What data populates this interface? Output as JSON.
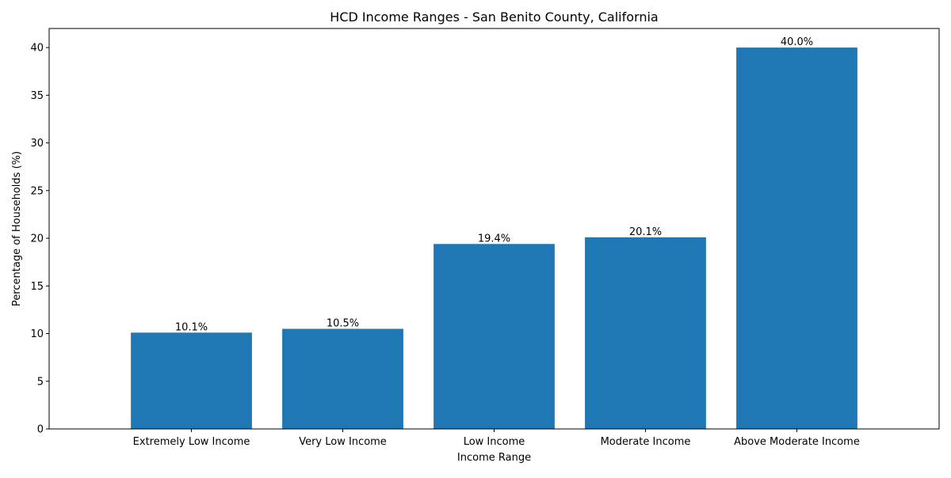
{
  "chart_data": {
    "type": "bar",
    "title": "HCD Income Ranges - San Benito County, California",
    "xlabel": "Income Range",
    "ylabel": "Percentage of Households (%)",
    "categories": [
      "Extremely Low Income",
      "Very Low Income",
      "Low Income",
      "Moderate Income",
      "Above Moderate Income"
    ],
    "values": [
      10.1,
      10.5,
      19.4,
      20.1,
      40.0
    ],
    "data_labels": [
      "10.1%",
      "10.5%",
      "19.4%",
      "20.1%",
      "40.0%"
    ],
    "ylim": [
      0,
      42
    ],
    "yticks": [
      0,
      5,
      10,
      15,
      20,
      25,
      30,
      35,
      40
    ],
    "ytick_labels": [
      "0",
      "5",
      "10",
      "15",
      "20",
      "25",
      "30",
      "35",
      "40"
    ],
    "grid": false,
    "legend": "none",
    "bar_color": "#1f77b4"
  }
}
